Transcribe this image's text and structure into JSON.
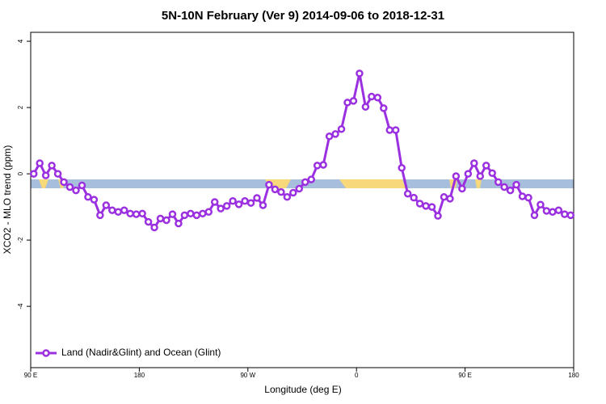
{
  "chart_data": {
    "type": "line",
    "title": "5N-10N February (Ver 9)   2014-09-06 to 2018-12-31",
    "x_label": "Longitude (deg E)",
    "y_label": "XCO2 - MLO trend (ppm)",
    "x": [
      92.5,
      97.5,
      102.5,
      107.5,
      112.5,
      117.5,
      122.5,
      127.5,
      132.5,
      137.5,
      142.5,
      147.5,
      152.5,
      157.5,
      162.5,
      167.5,
      172.5,
      177.5,
      182.5,
      187.5,
      192.5,
      197.5,
      202.5,
      207.5,
      212.5,
      217.5,
      222.5,
      227.5,
      232.5,
      237.5,
      242.5,
      247.5,
      252.5,
      257.5,
      262.5,
      267.5,
      272.5,
      277.5,
      282.5,
      287.5,
      292.5,
      297.5,
      302.5,
      307.5,
      312.5,
      317.5,
      322.5,
      327.5,
      332.5,
      337.5,
      342.5,
      347.5,
      352.5,
      357.5,
      362.5,
      367.5,
      372.5,
      377.5,
      382.5,
      387.5,
      392.5,
      397.5,
      402.5,
      407.5,
      412.5,
      417.5,
      422.5,
      427.5,
      432.5,
      437.5,
      442.5,
      447.5,
      452.5,
      457.5,
      462.5,
      467.5,
      472.5,
      477.5,
      482.5,
      487.5,
      492.5,
      497.5,
      502.5,
      507.5,
      512.5,
      517.5,
      522.5,
      527.5,
      532.5,
      537.5
    ],
    "series": [
      {
        "name": "Land (Nadir&Glint) and Ocean (Glint)",
        "color": "#9b30e0",
        "values": [
          0,
          0.32,
          -0.05,
          0.25,
          0,
          -0.25,
          -0.4,
          -0.5,
          -0.35,
          -0.7,
          -0.78,
          -1.25,
          -0.95,
          -1.1,
          -1.15,
          -1.1,
          -1.2,
          -1.22,
          -1.2,
          -1.45,
          -1.62,
          -1.35,
          -1.4,
          -1.22,
          -1.5,
          -1.25,
          -1.2,
          -1.25,
          -1.2,
          -1.15,
          -0.85,
          -1.05,
          -0.97,
          -0.82,
          -0.92,
          -0.82,
          -0.88,
          -0.73,
          -0.95,
          -0.33,
          -0.47,
          -0.55,
          -0.7,
          -0.57,
          -0.45,
          -0.25,
          -0.17,
          0.25,
          0.27,
          1.13,
          1.2,
          1.35,
          2.15,
          2.2,
          3.03,
          2.02,
          2.33,
          2.3,
          1.98,
          1.32,
          1.32,
          0.18,
          -0.6,
          -0.72,
          -0.9,
          -0.97,
          -1.0,
          -1.27,
          -0.7,
          -0.75,
          -0.07,
          -0.45,
          0,
          0.32,
          -0.07,
          0.25,
          0.02,
          -0.25,
          -0.4,
          -0.5,
          -0.33,
          -0.68,
          -0.72,
          -1.25,
          -0.93,
          -1.12,
          -1.15,
          -1.1,
          -1.22,
          -1.25
        ]
      }
    ],
    "xlim": [
      90,
      540
    ],
    "xticks": [
      {
        "value": 90,
        "label": "90 E"
      },
      {
        "value": 180,
        "label": "180"
      },
      {
        "value": 270,
        "label": "90 W"
      },
      {
        "value": 360,
        "label": "0"
      },
      {
        "value": 450,
        "label": "90 E"
      },
      {
        "value": 540,
        "label": "180"
      }
    ],
    "ylim": [
      -5.85,
      4.27
    ],
    "yticks": [
      -4,
      -2,
      0,
      2,
      4
    ],
    "legend": "bottom-left"
  }
}
